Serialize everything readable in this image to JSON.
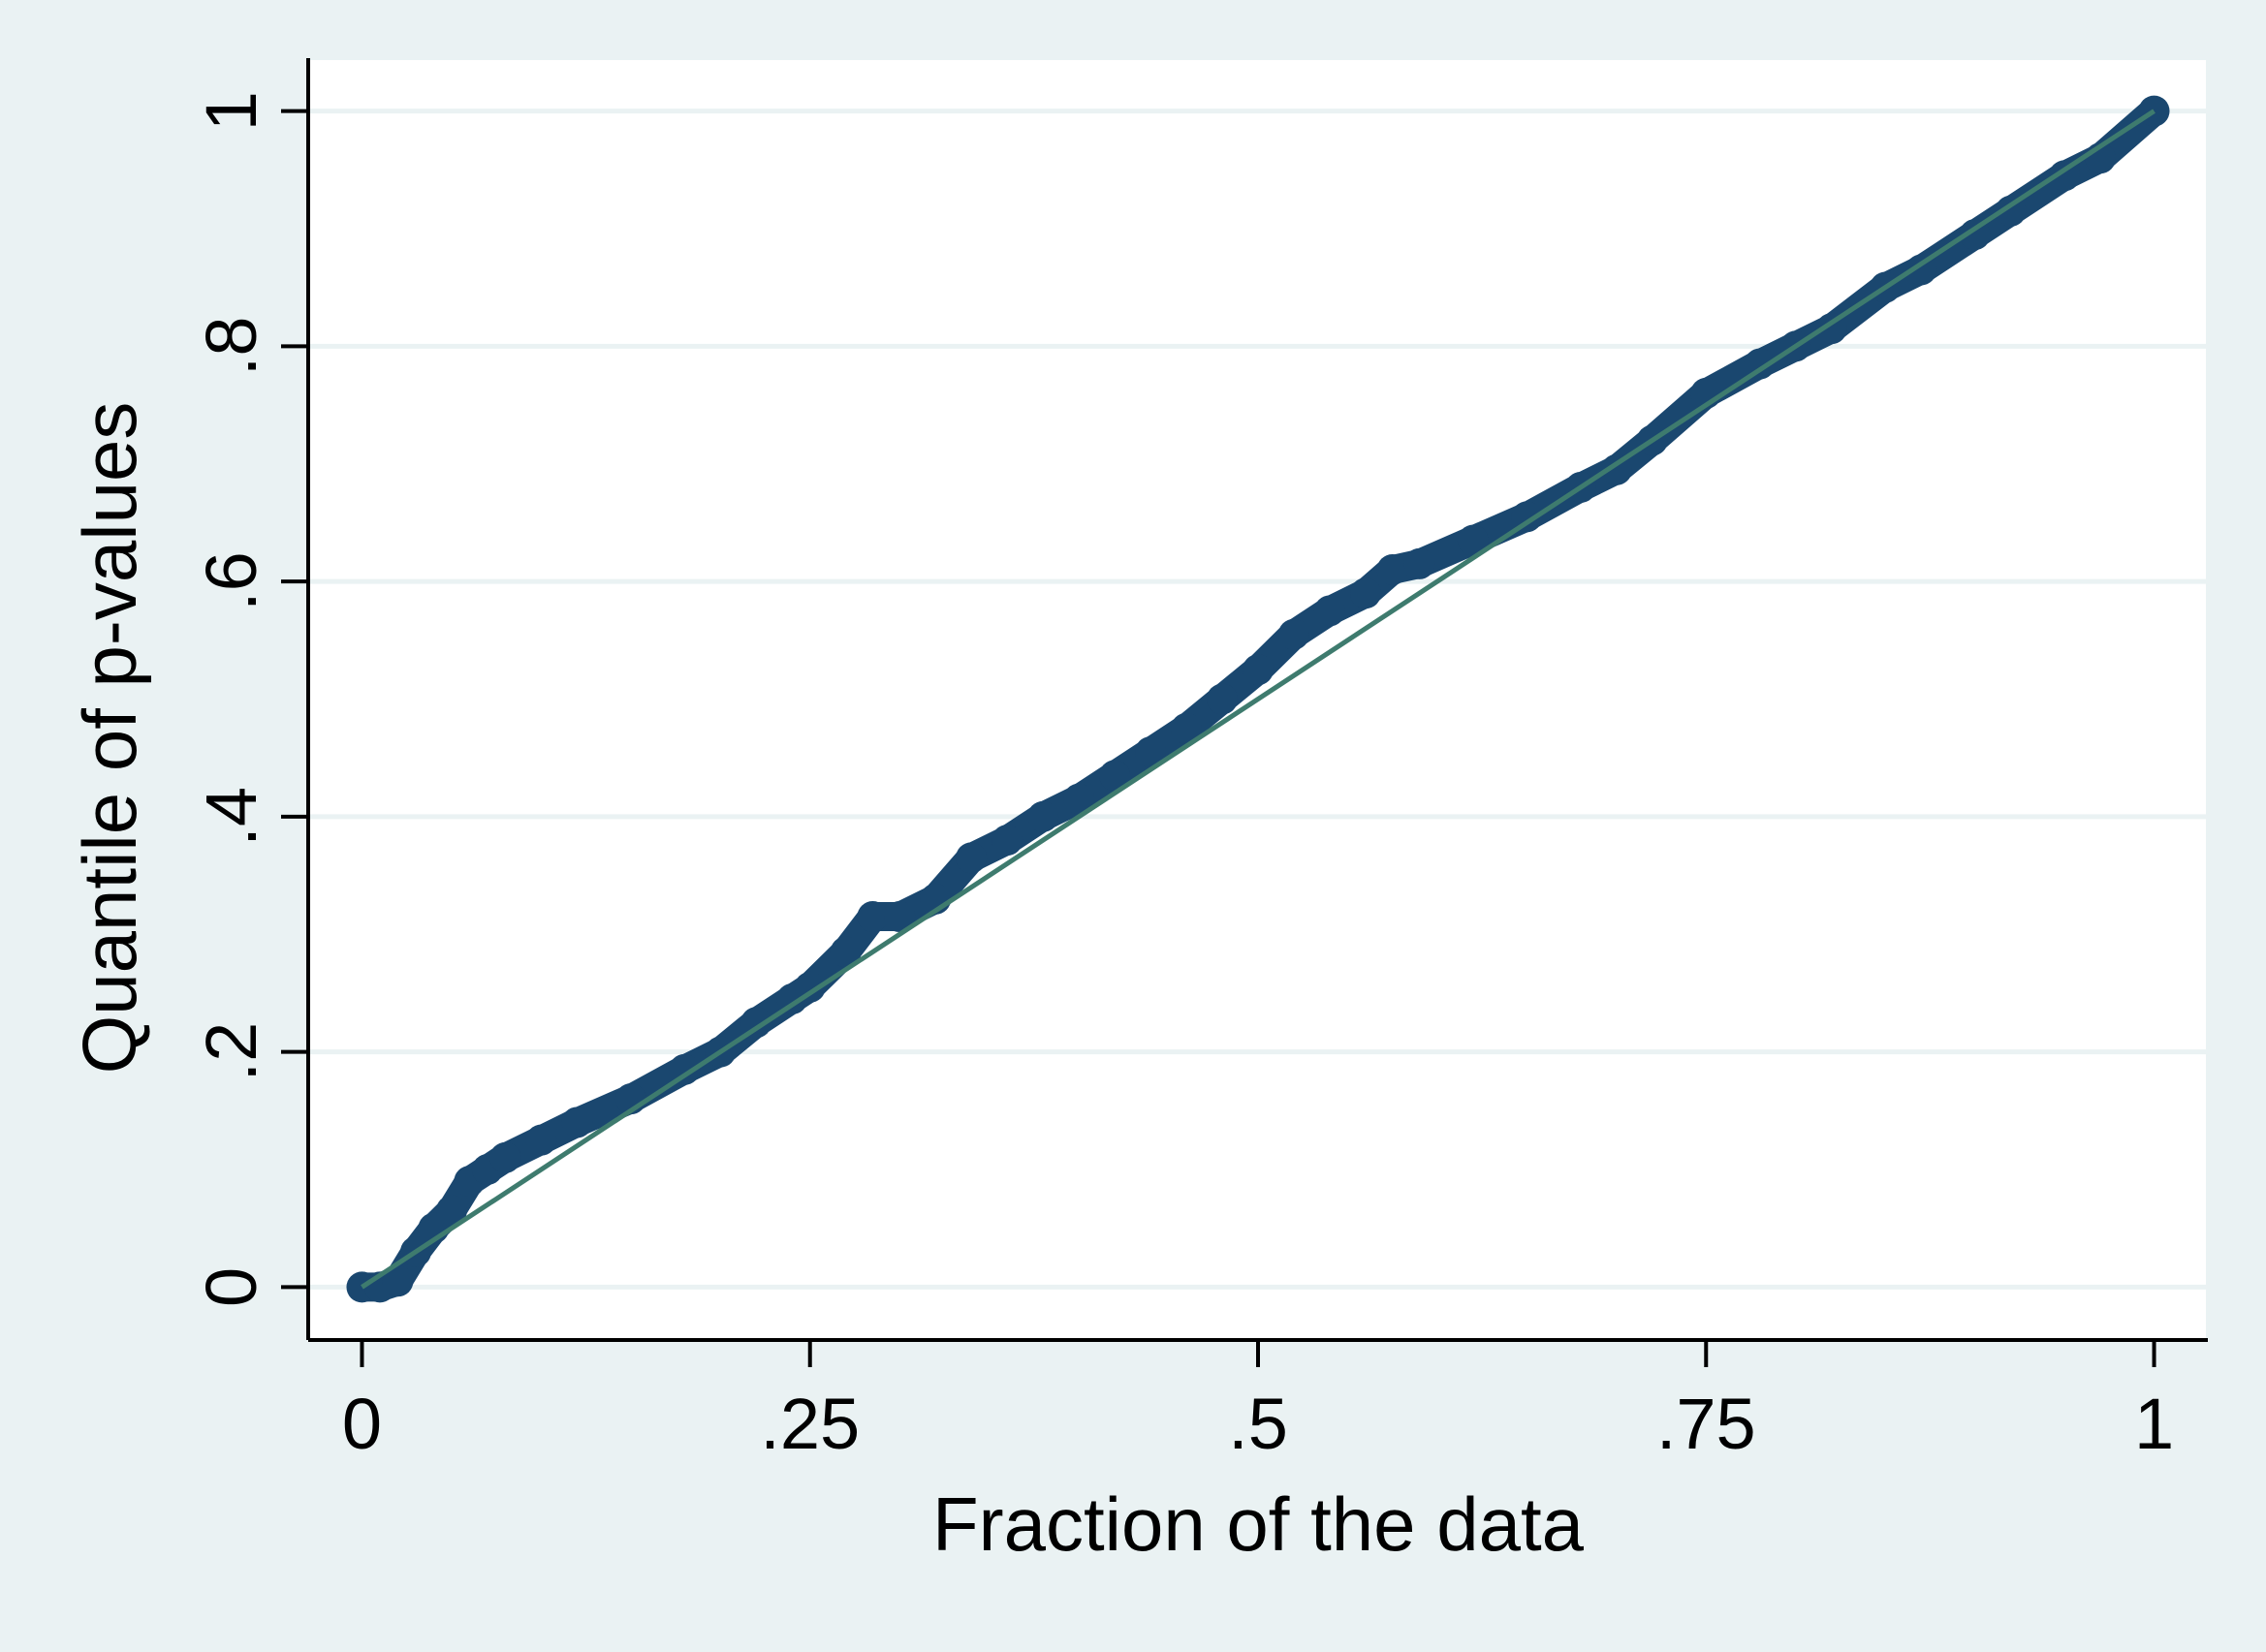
{
  "chart_data": {
    "type": "line",
    "title": "",
    "xlabel": "Fraction of the data",
    "ylabel": "Quantile of p-values",
    "xlim": [
      -0.03,
      1.03
    ],
    "ylim": [
      -0.045,
      1.045
    ],
    "x_ticks": [
      0,
      0.25,
      0.5,
      0.75,
      1
    ],
    "x_tick_labels": [
      "0",
      ".25",
      ".5",
      ".75",
      "1"
    ],
    "y_ticks": [
      0,
      0.2,
      0.4,
      0.6,
      0.8,
      1
    ],
    "y_tick_labels": [
      "0",
      ".2",
      ".4",
      ".6",
      ".8",
      "1"
    ],
    "grid": "horizontal",
    "legend": "none",
    "series": [
      {
        "role": "quantiles",
        "marker": "dense circles",
        "color": "#1a476f",
        "x": [
          0,
          0.01,
          0.02,
          0.03,
          0.04,
          0.05,
          0.06,
          0.07,
          0.08,
          0.1,
          0.12,
          0.15,
          0.18,
          0.2,
          0.22,
          0.24,
          0.25,
          0.27,
          0.285,
          0.3,
          0.32,
          0.34,
          0.36,
          0.38,
          0.4,
          0.42,
          0.44,
          0.46,
          0.48,
          0.5,
          0.52,
          0.54,
          0.56,
          0.575,
          0.59,
          0.62,
          0.65,
          0.68,
          0.7,
          0.72,
          0.75,
          0.78,
          0.8,
          0.82,
          0.85,
          0.87,
          0.9,
          0.92,
          0.95,
          0.97,
          1.0
        ],
        "y": [
          0,
          0,
          0.005,
          0.03,
          0.05,
          0.065,
          0.09,
          0.1,
          0.11,
          0.125,
          0.14,
          0.16,
          0.185,
          0.2,
          0.225,
          0.245,
          0.255,
          0.285,
          0.315,
          0.315,
          0.33,
          0.365,
          0.38,
          0.4,
          0.415,
          0.435,
          0.455,
          0.475,
          0.5,
          0.525,
          0.555,
          0.575,
          0.59,
          0.61,
          0.615,
          0.635,
          0.655,
          0.68,
          0.695,
          0.72,
          0.76,
          0.785,
          0.8,
          0.815,
          0.85,
          0.865,
          0.895,
          0.915,
          0.945,
          0.96,
          1.0
        ]
      },
      {
        "role": "reference",
        "marker": "line",
        "color": "#3e7b6e",
        "x": [
          0,
          1
        ],
        "y": [
          0,
          1
        ]
      }
    ]
  },
  "colors": {
    "page_background": "#eaf2f3",
    "plot_background": "#ffffff",
    "grid": "#eaf2f3",
    "axis": "#000000"
  }
}
